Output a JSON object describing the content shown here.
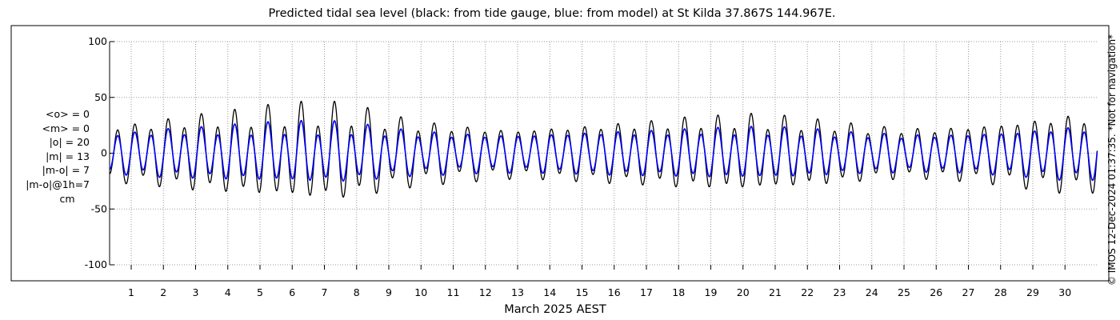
{
  "chart_data": {
    "type": "line",
    "title": "Predicted tidal sea level (black: from tide gauge, blue: from model) at St Kilda 37.867S 144.967E.",
    "xlabel": "March 2025 AEST",
    "ylabel": "",
    "ylim": [
      -100,
      100
    ],
    "yticks": [
      100,
      50,
      0,
      -50,
      -100
    ],
    "xlim": [
      0.33,
      31.0
    ],
    "xticks": [
      "1",
      "2",
      "3",
      "4",
      "5",
      "6",
      "7",
      "8",
      "9",
      "10",
      "11",
      "12",
      "13",
      "14",
      "15",
      "16",
      "17",
      "18",
      "19",
      "20",
      "21",
      "22",
      "23",
      "24",
      "25",
      "26",
      "27",
      "28",
      "29",
      "30"
    ],
    "grid": true,
    "series": [
      {
        "name": "from tide gauge",
        "color": "#000000",
        "semidiurnal_amplitude": [
          23,
          26,
          29,
          31,
          33,
          35,
          36,
          34,
          28,
          24,
          22,
          20,
          19,
          21,
          22,
          24,
          25,
          27,
          28,
          29,
          28,
          26,
          24,
          21,
          20,
          20,
          22,
          24,
          27,
          30
        ],
        "diurnal_amplitude": [
          5,
          6,
          7,
          8,
          10,
          11,
          12,
          11,
          9,
          7,
          6,
          5,
          4,
          3,
          4,
          4,
          5,
          6,
          6,
          7,
          7,
          6,
          5,
          5,
          4,
          4,
          4,
          5,
          6,
          7
        ]
      },
      {
        "name": "from model",
        "color": "#0000ff",
        "semidiurnal_amplitude": [
          17,
          19,
          20,
          21,
          22,
          23,
          23,
          22,
          19,
          17,
          16,
          15,
          15,
          16,
          17,
          18,
          18,
          19,
          20,
          20,
          20,
          19,
          17,
          16,
          15,
          15,
          16,
          17,
          19,
          21
        ],
        "diurnal_amplitude": [
          3,
          4,
          4,
          5,
          6,
          6,
          7,
          6,
          5,
          4,
          4,
          3,
          3,
          2,
          2,
          2,
          3,
          3,
          3,
          4,
          4,
          4,
          3,
          3,
          3,
          2,
          2,
          3,
          3,
          4
        ]
      }
    ]
  },
  "stats": {
    "mean_obs": "<o> = 0",
    "mean_model": "<m> = 0",
    "abs_obs": "|o| = 20",
    "abs_model": "|m| = 13",
    "abs_diff": "|m-o| = 7",
    "abs_diff_1h": "|m-o|@1h=7",
    "unit": "cm"
  },
  "copyright": "© IMOS 12-Dec-2024 01:37:35. *Not for navigation*"
}
